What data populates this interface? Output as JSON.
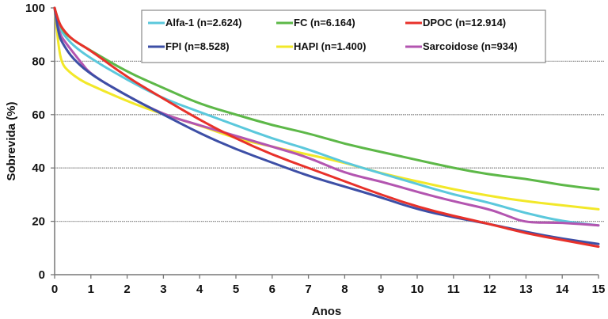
{
  "chart_data": {
    "type": "line",
    "title": "",
    "xlabel": "Anos",
    "ylabel": "Sobrevida (%)",
    "xlim": [
      0,
      15
    ],
    "ylim": [
      0,
      100
    ],
    "x_ticks": [
      "0",
      "1",
      "2",
      "3",
      "4",
      "5",
      "6",
      "7",
      "8",
      "9",
      "10",
      "11",
      "12",
      "13",
      "14",
      "15"
    ],
    "y_ticks": [
      "0",
      "20",
      "40",
      "60",
      "80",
      "100"
    ],
    "grid": "horizontal dotted at 20, 40, 60, 80",
    "legend_position": "top-right",
    "series": [
      {
        "name": "Alfa-1 (n=2.624)",
        "color": "#5bc8dc",
        "x": [
          0,
          0.1,
          0.25,
          0.5,
          1,
          2,
          3,
          4,
          5,
          6,
          7,
          8,
          9,
          10,
          11,
          12,
          13,
          14,
          15
        ],
        "y": [
          100,
          93,
          90,
          86,
          81,
          73,
          66,
          61,
          56,
          51,
          47,
          42,
          38,
          34,
          30,
          27,
          23,
          20,
          18.5
        ]
      },
      {
        "name": "FC (n=6.164)",
        "color": "#5db848",
        "x": [
          0,
          0.1,
          0.25,
          0.5,
          1,
          2,
          3,
          4,
          5,
          6,
          7,
          8,
          9,
          10,
          11,
          12,
          13,
          14,
          15
        ],
        "y": [
          100,
          95,
          91,
          88,
          84,
          76,
          70,
          64,
          60,
          56,
          53,
          49,
          46,
          43,
          40,
          37.5,
          36,
          33.5,
          32
        ]
      },
      {
        "name": "DPOC (n=12.914)",
        "color": "#e8312a",
        "x": [
          0,
          0.1,
          0.25,
          0.5,
          1,
          2,
          3,
          4,
          5,
          6,
          7,
          8,
          9,
          10,
          11,
          12,
          13,
          14,
          15
        ],
        "y": [
          100,
          95,
          91.5,
          88,
          84,
          74,
          66,
          58,
          51,
          45,
          40,
          35,
          30,
          25.5,
          22,
          19,
          15.5,
          13,
          10.5
        ]
      },
      {
        "name": "FPI (n=8.528)",
        "color": "#3d4fa6",
        "x": [
          0,
          0.1,
          0.25,
          0.5,
          1,
          2,
          3,
          4,
          5,
          6,
          7,
          8,
          9,
          10,
          11,
          12,
          13,
          14,
          15
        ],
        "y": [
          100,
          90,
          86,
          81,
          75,
          67,
          60,
          53,
          47,
          42,
          37,
          33,
          29,
          24.5,
          21.5,
          19,
          16,
          13.5,
          11.5
        ]
      },
      {
        "name": "HAPI (n=1.400)",
        "color": "#f2e829",
        "x": [
          0,
          0.1,
          0.2,
          0.4,
          0.7,
          1,
          2,
          3,
          4,
          5,
          6,
          7,
          8,
          9,
          10,
          11,
          12,
          13,
          14,
          15
        ],
        "y": [
          100,
          86,
          79,
          76,
          73,
          71,
          65,
          60,
          56,
          51,
          48,
          45,
          42,
          38,
          35,
          32,
          29.5,
          27.5,
          26,
          24.5
        ]
      },
      {
        "name": "Sarcoidose (n=934)",
        "color": "#b355b0",
        "x": [
          0,
          0.1,
          0.3,
          0.7,
          1,
          2,
          3,
          4,
          5,
          6,
          7,
          8,
          9,
          10,
          11,
          12,
          12.5,
          13,
          14,
          15
        ],
        "y": [
          100,
          91,
          87,
          80,
          75,
          67,
          60,
          56,
          52,
          48,
          44,
          38,
          35,
          31,
          27.5,
          24.5,
          22,
          19.5,
          19.5,
          18.5
        ]
      }
    ]
  }
}
